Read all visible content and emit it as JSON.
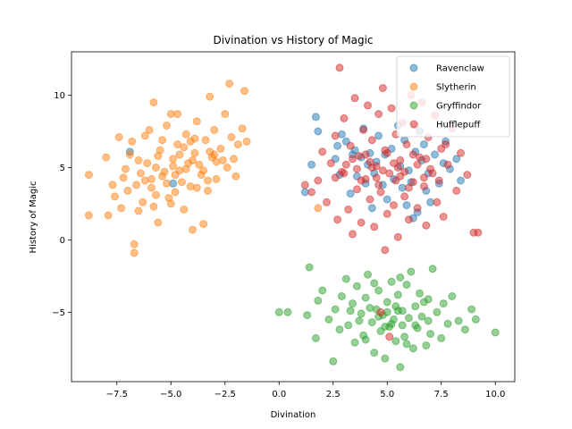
{
  "chart_data": {
    "type": "scatter",
    "title": "Divination vs History of Magic",
    "xlabel": "Divination",
    "ylabel": "History of Magic",
    "xlim": [
      -9.6,
      10.9
    ],
    "ylim": [
      -9.8,
      13.0
    ],
    "xticks": [
      -7.5,
      -5.0,
      -2.5,
      0.0,
      2.5,
      5.0,
      7.5,
      10.0
    ],
    "xtick_labels": [
      "−7.5",
      "−5.0",
      "−2.5",
      "0.0",
      "2.5",
      "5.0",
      "7.5",
      "10.0"
    ],
    "yticks": [
      -5,
      0,
      5,
      10
    ],
    "ytick_labels": [
      "−5",
      "0",
      "5",
      "10"
    ],
    "grid": false,
    "legend_position": "top-right",
    "marker_opacity": 0.5,
    "series": [
      {
        "name": "Ravenclaw",
        "color": "#1f77b4",
        "points": [
          [
            1.5,
            5.2
          ],
          [
            1.7,
            8.5
          ],
          [
            1.8,
            7.5
          ],
          [
            1.2,
            3.3
          ],
          [
            2.7,
            6.5
          ],
          [
            2.9,
            7.3
          ],
          [
            3.1,
            6.8
          ],
          [
            3.5,
            6.2
          ],
          [
            3.8,
            5.7
          ],
          [
            4.2,
            6.0
          ],
          [
            4.5,
            5.4
          ],
          [
            4.9,
            5.9
          ],
          [
            5.2,
            6.3
          ],
          [
            5.6,
            5.1
          ],
          [
            6.0,
            4.8
          ],
          [
            6.3,
            6.1
          ],
          [
            6.6,
            5.5
          ],
          [
            6.9,
            4.6
          ],
          [
            7.2,
            5.9
          ],
          [
            7.6,
            5.3
          ],
          [
            7.9,
            4.9
          ],
          [
            8.2,
            5.6
          ],
          [
            3.6,
            4.4
          ],
          [
            4.0,
            3.9
          ],
          [
            4.4,
            4.6
          ],
          [
            4.8,
            3.8
          ],
          [
            5.3,
            4.2
          ],
          [
            5.7,
            3.6
          ],
          [
            6.1,
            4.0
          ],
          [
            6.4,
            1.9
          ],
          [
            6.2,
            1.5
          ],
          [
            5.9,
            2.4
          ],
          [
            6.8,
            3.4
          ],
          [
            7.4,
            3.9
          ],
          [
            7.7,
            6.8
          ],
          [
            6.5,
            7.5
          ],
          [
            5.5,
            7.9
          ],
          [
            4.6,
            7.2
          ],
          [
            3.9,
            7.7
          ],
          [
            3.3,
            3.2
          ],
          [
            2.8,
            4.5
          ],
          [
            8.4,
            4.1
          ],
          [
            5.0,
            2.8
          ],
          [
            4.3,
            2.2
          ],
          [
            7.0,
            2.6
          ],
          [
            5.8,
            6.9
          ],
          [
            4.1,
            5.2
          ],
          [
            6.7,
            6.6
          ],
          [
            3.4,
            5.9
          ],
          [
            2.6,
            5.6
          ],
          [
            -6.9,
            6.1
          ],
          [
            -4.9,
            3.9
          ]
        ]
      },
      {
        "name": "Slytherin",
        "color": "#ff7f0e",
        "points": [
          [
            -8.8,
            4.5
          ],
          [
            -8.8,
            1.7
          ],
          [
            -8.0,
            5.7
          ],
          [
            -7.9,
            1.7
          ],
          [
            -7.6,
            3.0
          ],
          [
            -7.4,
            7.1
          ],
          [
            -7.3,
            2.2
          ],
          [
            -7.1,
            4.9
          ],
          [
            -7.0,
            3.4
          ],
          [
            -6.8,
            6.8
          ],
          [
            -6.7,
            -0.3
          ],
          [
            -6.7,
            -0.9
          ],
          [
            -6.5,
            5.5
          ],
          [
            -6.3,
            2.6
          ],
          [
            -6.2,
            4.1
          ],
          [
            -6.0,
            7.6
          ],
          [
            -5.9,
            3.6
          ],
          [
            -5.8,
            9.5
          ],
          [
            -5.7,
            5.0
          ],
          [
            -5.6,
            1.2
          ],
          [
            -5.5,
            6.2
          ],
          [
            -5.4,
            4.4
          ],
          [
            -5.2,
            7.9
          ],
          [
            -5.1,
            2.9
          ],
          [
            -5.0,
            8.7
          ],
          [
            -4.9,
            5.6
          ],
          [
            -4.8,
            3.3
          ],
          [
            -4.7,
            6.6
          ],
          [
            -4.6,
            4.8
          ],
          [
            -4.4,
            2.1
          ],
          [
            -4.3,
            7.3
          ],
          [
            -4.2,
            5.3
          ],
          [
            -4.1,
            3.7
          ],
          [
            -4.0,
            0.7
          ],
          [
            -3.9,
            6.0
          ],
          [
            -3.8,
            8.2
          ],
          [
            -3.6,
            4.5
          ],
          [
            -3.5,
            1.1
          ],
          [
            -3.4,
            6.9
          ],
          [
            -3.3,
            3.4
          ],
          [
            -3.2,
            9.9
          ],
          [
            -3.1,
            5.7
          ],
          [
            -3.0,
            7.6
          ],
          [
            -2.9,
            4.2
          ],
          [
            -2.7,
            6.3
          ],
          [
            -2.5,
            8.7
          ],
          [
            -2.4,
            5.0
          ],
          [
            -2.3,
            10.8
          ],
          [
            -2.2,
            7.1
          ],
          [
            -2.0,
            4.4
          ],
          [
            -1.9,
            6.6
          ],
          [
            -1.7,
            7.7
          ],
          [
            -1.6,
            10.3
          ],
          [
            -1.5,
            6.8
          ],
          [
            -6.4,
            4.6
          ],
          [
            -6.1,
            5.3
          ],
          [
            -5.9,
            4.2
          ],
          [
            -5.6,
            5.8
          ],
          [
            -5.3,
            4.7
          ],
          [
            -5.2,
            3.9
          ],
          [
            -4.9,
            5.1
          ],
          [
            -4.6,
            5.9
          ],
          [
            -4.5,
            4.0
          ],
          [
            -4.3,
            4.9
          ],
          [
            -4.0,
            5.5
          ],
          [
            -3.7,
            5.2
          ],
          [
            -3.5,
            4.8
          ],
          [
            -3.2,
            6.1
          ],
          [
            -2.9,
            5.4
          ],
          [
            -6.6,
            3.8
          ],
          [
            -7.2,
            4.3
          ],
          [
            -5.8,
            2.3
          ],
          [
            -5.0,
            2.5
          ],
          [
            -4.4,
            6.4
          ],
          [
            -3.9,
            7.0
          ],
          [
            -3.0,
            5.9
          ],
          [
            -2.6,
            5.5
          ],
          [
            -6.9,
            5.9
          ],
          [
            -7.7,
            3.8
          ],
          [
            -4.7,
            8.7
          ],
          [
            -3.3,
            4.1
          ],
          [
            1.8,
            2.2
          ],
          [
            -5.4,
            6.9
          ],
          [
            -6.2,
            7.2
          ],
          [
            -4.1,
            6.8
          ],
          [
            -2.1,
            5.6
          ],
          [
            -5.7,
            3.1
          ],
          [
            -4.8,
            4.5
          ],
          [
            -3.8,
            3.6
          ],
          [
            -6.5,
            2.0
          ]
        ]
      },
      {
        "name": "Gryffindor",
        "color": "#2ca02c",
        "points": [
          [
            0.0,
            -5.0
          ],
          [
            0.4,
            -5.0
          ],
          [
            1.3,
            -5.2
          ],
          [
            1.4,
            -1.9
          ],
          [
            1.7,
            -6.8
          ],
          [
            1.8,
            -4.2
          ],
          [
            2.0,
            -3.5
          ],
          [
            2.3,
            -5.5
          ],
          [
            2.5,
            -8.4
          ],
          [
            2.6,
            -4.8
          ],
          [
            2.8,
            -6.2
          ],
          [
            2.9,
            -3.9
          ],
          [
            3.1,
            -2.7
          ],
          [
            3.2,
            -5.9
          ],
          [
            3.4,
            -4.4
          ],
          [
            3.5,
            -7.1
          ],
          [
            3.6,
            -3.2
          ],
          [
            3.8,
            -5.1
          ],
          [
            3.9,
            -6.6
          ],
          [
            4.0,
            -4.0
          ],
          [
            4.1,
            -2.4
          ],
          [
            4.3,
            -5.7
          ],
          [
            4.4,
            -7.8
          ],
          [
            4.5,
            -4.8
          ],
          [
            4.6,
            -3.5
          ],
          [
            4.7,
            -6.3
          ],
          [
            4.8,
            -5.2
          ],
          [
            4.9,
            -8.2
          ],
          [
            5.0,
            -4.3
          ],
          [
            5.1,
            -6.0
          ],
          [
            5.2,
            -2.9
          ],
          [
            5.3,
            -5.5
          ],
          [
            5.4,
            -7.0
          ],
          [
            5.5,
            -3.8
          ],
          [
            5.6,
            -8.8
          ],
          [
            5.7,
            -4.9
          ],
          [
            5.8,
            -6.7
          ],
          [
            5.9,
            -3.1
          ],
          [
            6.0,
            -5.4
          ],
          [
            6.1,
            -2.2
          ],
          [
            6.2,
            -7.5
          ],
          [
            6.3,
            -4.6
          ],
          [
            6.4,
            -6.1
          ],
          [
            6.5,
            -3.7
          ],
          [
            6.6,
            -5.3
          ],
          [
            6.8,
            -7.3
          ],
          [
            6.9,
            -4.1
          ],
          [
            7.0,
            -6.5
          ],
          [
            7.1,
            -2.0
          ],
          [
            7.3,
            -5.0
          ],
          [
            7.5,
            -6.8
          ],
          [
            7.6,
            -4.4
          ],
          [
            7.8,
            -5.8
          ],
          [
            8.0,
            -3.9
          ],
          [
            8.3,
            -5.6
          ],
          [
            8.6,
            -6.2
          ],
          [
            8.9,
            -4.8
          ],
          [
            9.1,
            -5.5
          ],
          [
            10.0,
            -6.4
          ],
          [
            5.0,
            -5.0
          ],
          [
            5.2,
            -5.8
          ],
          [
            5.4,
            -4.6
          ],
          [
            4.9,
            -6.0
          ],
          [
            5.7,
            -5.9
          ],
          [
            4.6,
            -5.3
          ],
          [
            5.5,
            -4.9
          ],
          [
            4.2,
            -4.7
          ],
          [
            6.3,
            -5.9
          ],
          [
            3.7,
            -5.6
          ],
          [
            6.7,
            -4.3
          ],
          [
            4.0,
            -6.9
          ],
          [
            5.9,
            -7.2
          ],
          [
            3.3,
            -4.9
          ],
          [
            6.9,
            -5.6
          ],
          [
            4.4,
            -3.0
          ],
          [
            5.6,
            -2.6
          ]
        ]
      },
      {
        "name": "Hufflepuff",
        "color": "#d62728",
        "points": [
          [
            2.8,
            11.9
          ],
          [
            1.2,
            3.8
          ],
          [
            1.5,
            3.3
          ],
          [
            1.8,
            4.1
          ],
          [
            2.0,
            6.1
          ],
          [
            2.2,
            2.6
          ],
          [
            2.4,
            5.3
          ],
          [
            2.6,
            7.2
          ],
          [
            2.7,
            1.4
          ],
          [
            2.9,
            4.7
          ],
          [
            3.0,
            8.4
          ],
          [
            3.2,
            2.1
          ],
          [
            3.3,
            6.5
          ],
          [
            3.4,
            0.4
          ],
          [
            3.5,
            9.8
          ],
          [
            3.6,
            3.5
          ],
          [
            3.7,
            5.8
          ],
          [
            3.8,
            1.2
          ],
          [
            3.9,
            7.6
          ],
          [
            4.0,
            4.2
          ],
          [
            4.1,
            9.3
          ],
          [
            4.2,
            2.8
          ],
          [
            4.3,
            6.9
          ],
          [
            4.4,
            0.9
          ],
          [
            4.5,
            5.1
          ],
          [
            4.6,
            8.7
          ],
          [
            4.7,
            3.3
          ],
          [
            4.8,
            10.5
          ],
          [
            4.9,
            6.2
          ],
          [
            5.0,
            1.8
          ],
          [
            5.1,
            4.6
          ],
          [
            5.2,
            9.1
          ],
          [
            5.3,
            2.4
          ],
          [
            5.4,
            7.3
          ],
          [
            5.5,
            0.2
          ],
          [
            5.6,
            5.5
          ],
          [
            5.7,
            8.1
          ],
          [
            5.8,
            3.0
          ],
          [
            5.9,
            6.6
          ],
          [
            6.0,
            1.4
          ],
          [
            6.1,
            10.0
          ],
          [
            6.2,
            4.0
          ],
          [
            6.3,
            7.9
          ],
          [
            6.4,
            2.2
          ],
          [
            6.5,
            5.7
          ],
          [
            6.6,
            9.5
          ],
          [
            6.7,
            3.7
          ],
          [
            6.8,
            1.0
          ],
          [
            6.9,
            7.1
          ],
          [
            7.0,
            4.9
          ],
          [
            7.2,
            8.6
          ],
          [
            7.3,
            2.6
          ],
          [
            7.5,
            6.3
          ],
          [
            7.6,
            1.6
          ],
          [
            7.8,
            5.2
          ],
          [
            8.0,
            7.7
          ],
          [
            8.2,
            3.4
          ],
          [
            8.4,
            6.0
          ],
          [
            8.7,
            4.5
          ],
          [
            9.0,
            0.5
          ],
          [
            9.2,
            0.5
          ],
          [
            4.9,
            -0.7
          ],
          [
            5.1,
            -6.7
          ],
          [
            4.7,
            -5.0
          ],
          [
            3.0,
            4.6
          ],
          [
            3.6,
            4.9
          ],
          [
            4.2,
            5.4
          ],
          [
            4.8,
            4.8
          ],
          [
            5.3,
            5.3
          ],
          [
            5.8,
            4.7
          ],
          [
            6.4,
            5.2
          ],
          [
            7.1,
            4.6
          ],
          [
            3.4,
            5.6
          ],
          [
            4.0,
            5.9
          ],
          [
            4.5,
            4.3
          ],
          [
            5.0,
            6.0
          ],
          [
            5.6,
            4.4
          ],
          [
            6.2,
            5.9
          ],
          [
            6.8,
            5.6
          ],
          [
            7.4,
            4.1
          ],
          [
            3.8,
            4.1
          ],
          [
            4.6,
            3.8
          ],
          [
            5.4,
            4.1
          ],
          [
            6.0,
            3.6
          ],
          [
            6.7,
            4.3
          ],
          [
            3.1,
            5.2
          ],
          [
            2.6,
            4.3
          ],
          [
            7.7,
            6.6
          ],
          [
            5.5,
            5.0
          ],
          [
            4.3,
            5.0
          ]
        ]
      }
    ]
  }
}
